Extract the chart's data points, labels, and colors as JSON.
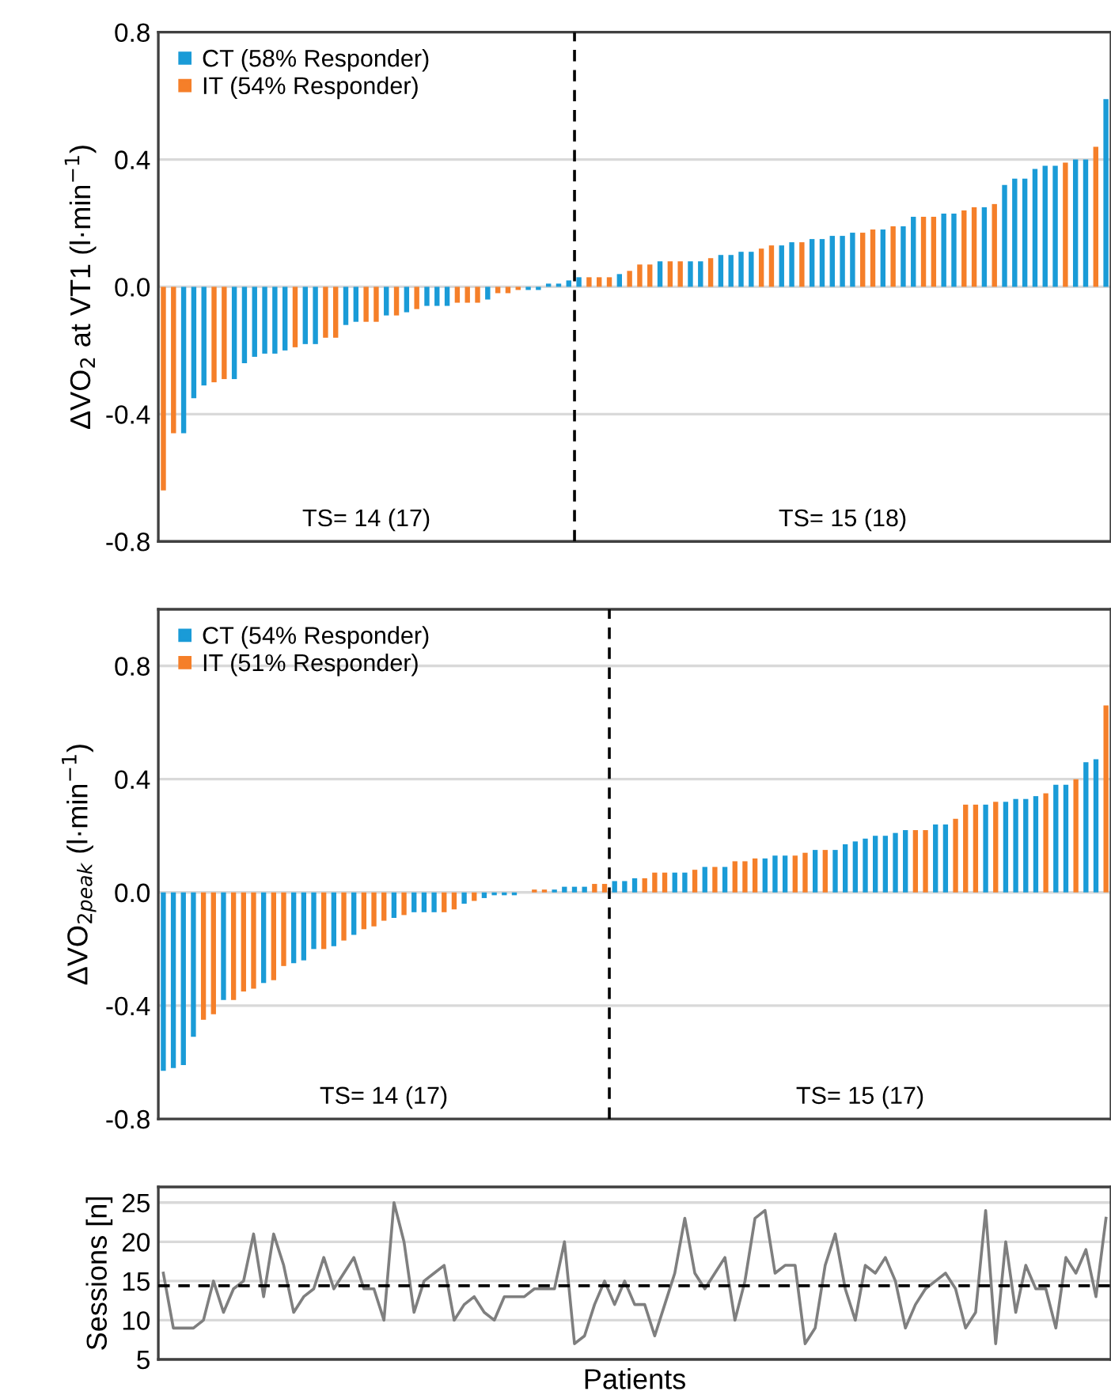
{
  "chart_data": [
    {
      "type": "bar",
      "ylabel": "ΔVO$_{2}$ at VT1 (l·min$^{−1}$)",
      "categories": [
        null,
        null,
        null,
        null,
        null,
        null,
        null,
        null,
        null,
        null,
        null,
        null,
        null,
        null,
        null,
        null,
        null,
        null,
        null,
        null,
        null,
        null,
        null,
        null,
        null,
        null,
        null,
        null,
        null,
        null,
        null,
        null,
        null,
        null,
        null,
        null,
        null,
        null,
        null,
        null,
        null,
        null,
        null,
        null,
        null,
        null,
        null,
        null,
        null,
        null,
        null,
        null,
        null,
        null,
        null,
        null,
        null,
        null,
        null,
        null,
        null,
        null,
        null,
        null,
        null,
        null,
        null,
        null,
        null,
        null,
        null,
        null,
        null,
        null,
        null,
        null,
        null,
        null,
        null,
        null,
        null,
        null,
        null,
        null,
        null,
        null,
        null,
        null,
        null,
        null,
        null,
        null,
        null,
        null
      ],
      "series": [
        {
          "name": "CT (58% Responder)",
          "color": "#1a9bd7",
          "values": [
            null,
            null,
            -0.46,
            -0.35,
            -0.31,
            null,
            null,
            -0.29,
            -0.24,
            -0.22,
            -0.21,
            -0.21,
            -0.2,
            null,
            -0.18,
            -0.18,
            null,
            null,
            -0.12,
            -0.11,
            null,
            null,
            -0.09,
            null,
            -0.08,
            null,
            -0.06,
            -0.06,
            -0.06,
            null,
            null,
            null,
            -0.04,
            null,
            null,
            null,
            -0.01,
            -0.01,
            0.01,
            0.01,
            0.02,
            0.03,
            null,
            null,
            null,
            0.04,
            null,
            null,
            null,
            0.08,
            null,
            null,
            0.08,
            0.08,
            null,
            0.1,
            0.1,
            0.11,
            0.11,
            null,
            null,
            0.13,
            0.14,
            null,
            0.15,
            0.15,
            0.16,
            0.16,
            0.17,
            null,
            null,
            0.18,
            null,
            0.19,
            0.22,
            null,
            null,
            0.23,
            0.23,
            null,
            null,
            0.25,
            null,
            0.32,
            0.34,
            0.34,
            0.37,
            0.38,
            0.38,
            null,
            0.4,
            0.4,
            null,
            0.59
          ]
        },
        {
          "name": "IT (54% Responder)",
          "color": "#f57f29",
          "values": [
            -0.64,
            -0.46,
            null,
            null,
            null,
            -0.3,
            -0.29,
            null,
            null,
            null,
            null,
            null,
            null,
            -0.19,
            null,
            null,
            -0.16,
            -0.16,
            null,
            null,
            -0.11,
            -0.11,
            null,
            -0.09,
            null,
            -0.07,
            null,
            null,
            null,
            -0.05,
            -0.05,
            -0.05,
            null,
            -0.02,
            -0.02,
            -0.01,
            null,
            null,
            null,
            null,
            null,
            null,
            0.03,
            0.03,
            0.03,
            null,
            0.05,
            0.07,
            0.07,
            null,
            0.08,
            0.08,
            null,
            null,
            0.09,
            null,
            null,
            null,
            null,
            0.12,
            0.13,
            null,
            null,
            0.14,
            null,
            null,
            null,
            null,
            null,
            0.17,
            0.18,
            null,
            0.19,
            null,
            null,
            0.22,
            0.22,
            null,
            null,
            0.24,
            0.25,
            null,
            0.26,
            null,
            null,
            null,
            null,
            null,
            null,
            0.39,
            null,
            null,
            0.44,
            null
          ]
        }
      ],
      "ylim": [
        -0.8,
        0.8
      ],
      "yticks": [
        {
          "value": -0.8,
          "label": "-0.8"
        },
        {
          "value": -0.4,
          "label": "-0.4"
        },
        {
          "value": 0,
          "label": "0.0"
        },
        {
          "value": 0.4,
          "label": "0.4"
        },
        {
          "value": 0.8,
          "label": "0.8"
        }
      ],
      "grid": "y",
      "legend": "top left",
      "tick_labels": "y",
      "annotations": [
        "TS= 14 (17)",
        "TS= 15 (18)"
      ]
    },
    {
      "type": "bar",
      "ylabel": "ΔVO$_{2peak}$ (l·min$^{−1}$)",
      "categories": [
        null,
        null,
        null,
        null,
        null,
        null,
        null,
        null,
        null,
        null,
        null,
        null,
        null,
        null,
        null,
        null,
        null,
        null,
        null,
        null,
        null,
        null,
        null,
        null,
        null,
        null,
        null,
        null,
        null,
        null,
        null,
        null,
        null,
        null,
        null,
        null,
        null,
        null,
        null,
        null,
        null,
        null,
        null,
        null,
        null,
        null,
        null,
        null,
        null,
        null,
        null,
        null,
        null,
        null,
        null,
        null,
        null,
        null,
        null,
        null,
        null,
        null,
        null,
        null,
        null,
        null,
        null,
        null,
        null,
        null,
        null,
        null,
        null,
        null,
        null,
        null,
        null,
        null,
        null,
        null,
        null,
        null,
        null,
        null,
        null,
        null,
        null,
        null,
        null,
        null,
        null,
        null,
        null,
        null,
        null
      ],
      "series": [
        {
          "name": "CT (54% Responder)",
          "color": "#1a9bd7",
          "values": [
            -0.63,
            -0.62,
            -0.61,
            -0.51,
            null,
            null,
            -0.38,
            null,
            null,
            null,
            -0.32,
            null,
            null,
            -0.25,
            -0.24,
            -0.2,
            null,
            -0.19,
            null,
            -0.15,
            null,
            null,
            null,
            -0.09,
            null,
            -0.07,
            -0.07,
            -0.07,
            null,
            null,
            -0.04,
            null,
            -0.02,
            -0.01,
            -0.01,
            -0.01,
            0.0,
            null,
            null,
            0.01,
            0.02,
            0.02,
            0.02,
            null,
            null,
            0.04,
            0.04,
            0.05,
            null,
            null,
            null,
            0.07,
            0.07,
            null,
            0.09,
            null,
            0.09,
            null,
            null,
            null,
            0.12,
            0.13,
            0.13,
            null,
            null,
            0.15,
            null,
            0.15,
            0.17,
            0.18,
            0.19,
            0.2,
            0.2,
            0.21,
            0.22,
            null,
            null,
            0.24,
            0.24,
            null,
            null,
            null,
            0.31,
            null,
            0.32,
            0.33,
            0.33,
            0.34,
            null,
            0.38,
            0.38,
            null,
            0.46,
            0.47,
            null
          ]
        },
        {
          "name": "IT (51% Responder)",
          "color": "#f57f29",
          "values": [
            null,
            null,
            null,
            null,
            -0.45,
            -0.43,
            null,
            -0.38,
            -0.35,
            -0.34,
            null,
            -0.31,
            -0.26,
            null,
            null,
            null,
            -0.2,
            null,
            -0.17,
            null,
            -0.13,
            -0.12,
            -0.1,
            null,
            -0.08,
            null,
            null,
            null,
            -0.07,
            -0.06,
            null,
            -0.03,
            null,
            null,
            null,
            null,
            null,
            0.01,
            0.01,
            null,
            null,
            null,
            null,
            0.03,
            0.03,
            null,
            null,
            null,
            0.05,
            0.07,
            0.07,
            null,
            null,
            0.08,
            null,
            0.09,
            null,
            0.11,
            0.11,
            0.12,
            null,
            null,
            null,
            0.13,
            0.14,
            null,
            0.15,
            null,
            null,
            null,
            null,
            null,
            null,
            null,
            null,
            0.22,
            0.22,
            null,
            null,
            0.26,
            0.31,
            0.31,
            null,
            0.32,
            null,
            null,
            null,
            null,
            0.35,
            null,
            null,
            0.4,
            null,
            null,
            0.66
          ]
        }
      ],
      "ylim": [
        -0.8,
        1.0
      ],
      "yticks": [
        {
          "value": -0.8,
          "label": "-0.8"
        },
        {
          "value": -0.4,
          "label": "-0.4"
        },
        {
          "value": 0,
          "label": "0.0"
        },
        {
          "value": 0.4,
          "label": "0.4"
        },
        {
          "value": 0.8,
          "label": "0.8"
        }
      ],
      "grid": "y",
      "legend": "top left",
      "tick_labels": "y",
      "annotations": [
        "TS= 14 (17)",
        "TS= 15 (17)"
      ]
    },
    {
      "type": "line",
      "ylabel": "Sessions [n]",
      "xlabel": "Patients",
      "categories": [
        null,
        null,
        null,
        null,
        null,
        null,
        null,
        null,
        null,
        null,
        null,
        null,
        null,
        null,
        null,
        null,
        null,
        null,
        null,
        null,
        null,
        null,
        null,
        null,
        null,
        null,
        null,
        null,
        null,
        null,
        null,
        null,
        null,
        null,
        null,
        null,
        null,
        null,
        null,
        null,
        null,
        null,
        null,
        null,
        null,
        null,
        null,
        null,
        null,
        null,
        null,
        null,
        null,
        null,
        null,
        null,
        null,
        null,
        null,
        null,
        null,
        null,
        null,
        null,
        null,
        null,
        null,
        null,
        null,
        null,
        null,
        null,
        null,
        null,
        null,
        null,
        null,
        null,
        null,
        null,
        null,
        null,
        null,
        null,
        null,
        null,
        null,
        null,
        null,
        null,
        null,
        null,
        null,
        null,
        null
      ],
      "series": [
        {
          "color": "#7f7f7f",
          "values": [
            16,
            9,
            9,
            9,
            10,
            15,
            11,
            14,
            15,
            21,
            13,
            21,
            17,
            11,
            13,
            14,
            18,
            14,
            16,
            18,
            14,
            14,
            10,
            25,
            20,
            11,
            15,
            16,
            17,
            10,
            12,
            13,
            11,
            10,
            13,
            13,
            13,
            14,
            14,
            14,
            20,
            7,
            8,
            12,
            15,
            12,
            15,
            12,
            12,
            8,
            12,
            16,
            23,
            16,
            14,
            16,
            18,
            10,
            15,
            23,
            24,
            16,
            17,
            17,
            7,
            9,
            17,
            21,
            14,
            10,
            17,
            16,
            18,
            15,
            9,
            12,
            14,
            15,
            16,
            14,
            9,
            11,
            24,
            7,
            20,
            11,
            17,
            14,
            14,
            9,
            18,
            16,
            19,
            13,
            23
          ]
        }
      ],
      "ylim": [
        5,
        27
      ],
      "yticks": [
        5,
        10,
        15,
        20,
        25
      ],
      "grid": "y",
      "tick_labels": "y",
      "line_style": "solid",
      "ref_lines": [
        {
          "axis": "y",
          "value": 14.4,
          "color": "#000000",
          "line_style": "dashed"
        }
      ]
    }
  ]
}
